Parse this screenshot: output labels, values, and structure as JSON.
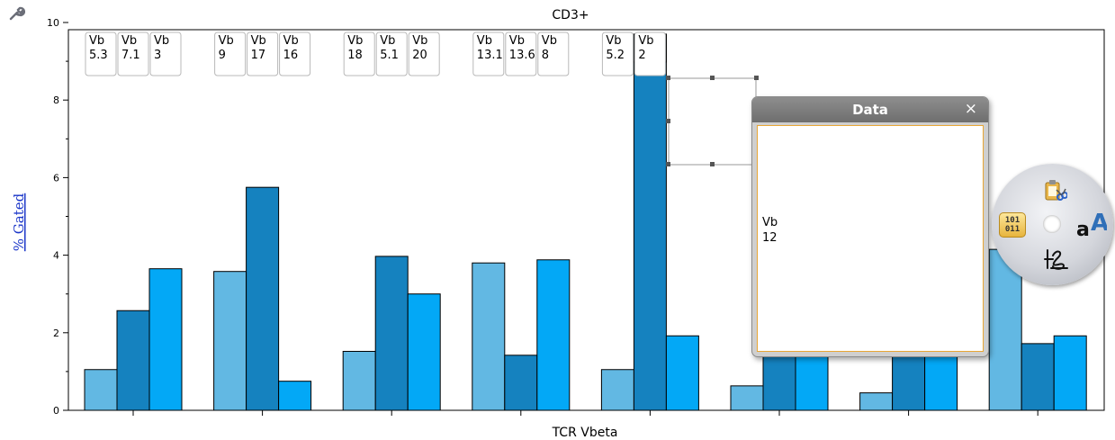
{
  "chart_data": {
    "type": "bar",
    "title": "CD3+",
    "xlabel": "TCR Vbeta",
    "ylabel": "% Gated",
    "ylim": [
      0,
      10
    ],
    "yticks": [
      0,
      2,
      4,
      6,
      8,
      10
    ],
    "grid": false,
    "colors": [
      "#62b8e3",
      "#1582bf",
      "#03a8f6"
    ],
    "selected_color": "#b1d7e8",
    "groups": [
      {
        "values": [
          1.05,
          2.57,
          3.65
        ],
        "labels": [
          "Vb\n5.3",
          "Vb\n7.1",
          "Vb\n3"
        ]
      },
      {
        "values": [
          3.58,
          5.75,
          0.75
        ],
        "labels": [
          "Vb\n9",
          "Vb\n17",
          "Vb\n16"
        ]
      },
      {
        "values": [
          1.52,
          3.97,
          3.0
        ],
        "labels": [
          "Vb\n18",
          "Vb\n5.1",
          "Vb\n20"
        ]
      },
      {
        "values": [
          3.8,
          1.42,
          3.88
        ],
        "labels": [
          "Vb\n13.1",
          "Vb\n13.6",
          "Vb\n8"
        ]
      },
      {
        "values": [
          1.05,
          9.7,
          1.92
        ],
        "labels": [
          "Vb\n5.2",
          "Vb\n2",
          ""
        ]
      },
      {
        "values": [
          0.63,
          1.8,
          1.8
        ],
        "labels": [
          "",
          "",
          ""
        ]
      },
      {
        "values": [
          0.45,
          1.8,
          1.8
        ],
        "labels": [
          "",
          "",
          ""
        ]
      },
      {
        "values": [
          4.15,
          1.72,
          1.92
        ],
        "labels": [
          "",
          "",
          ""
        ]
      }
    ],
    "selected_bar": [
      4,
      1
    ]
  },
  "popup": {
    "title": "Data",
    "close": "×",
    "content": "Vb\n12"
  },
  "radial_menu": {
    "binary_label": "101\n011"
  }
}
